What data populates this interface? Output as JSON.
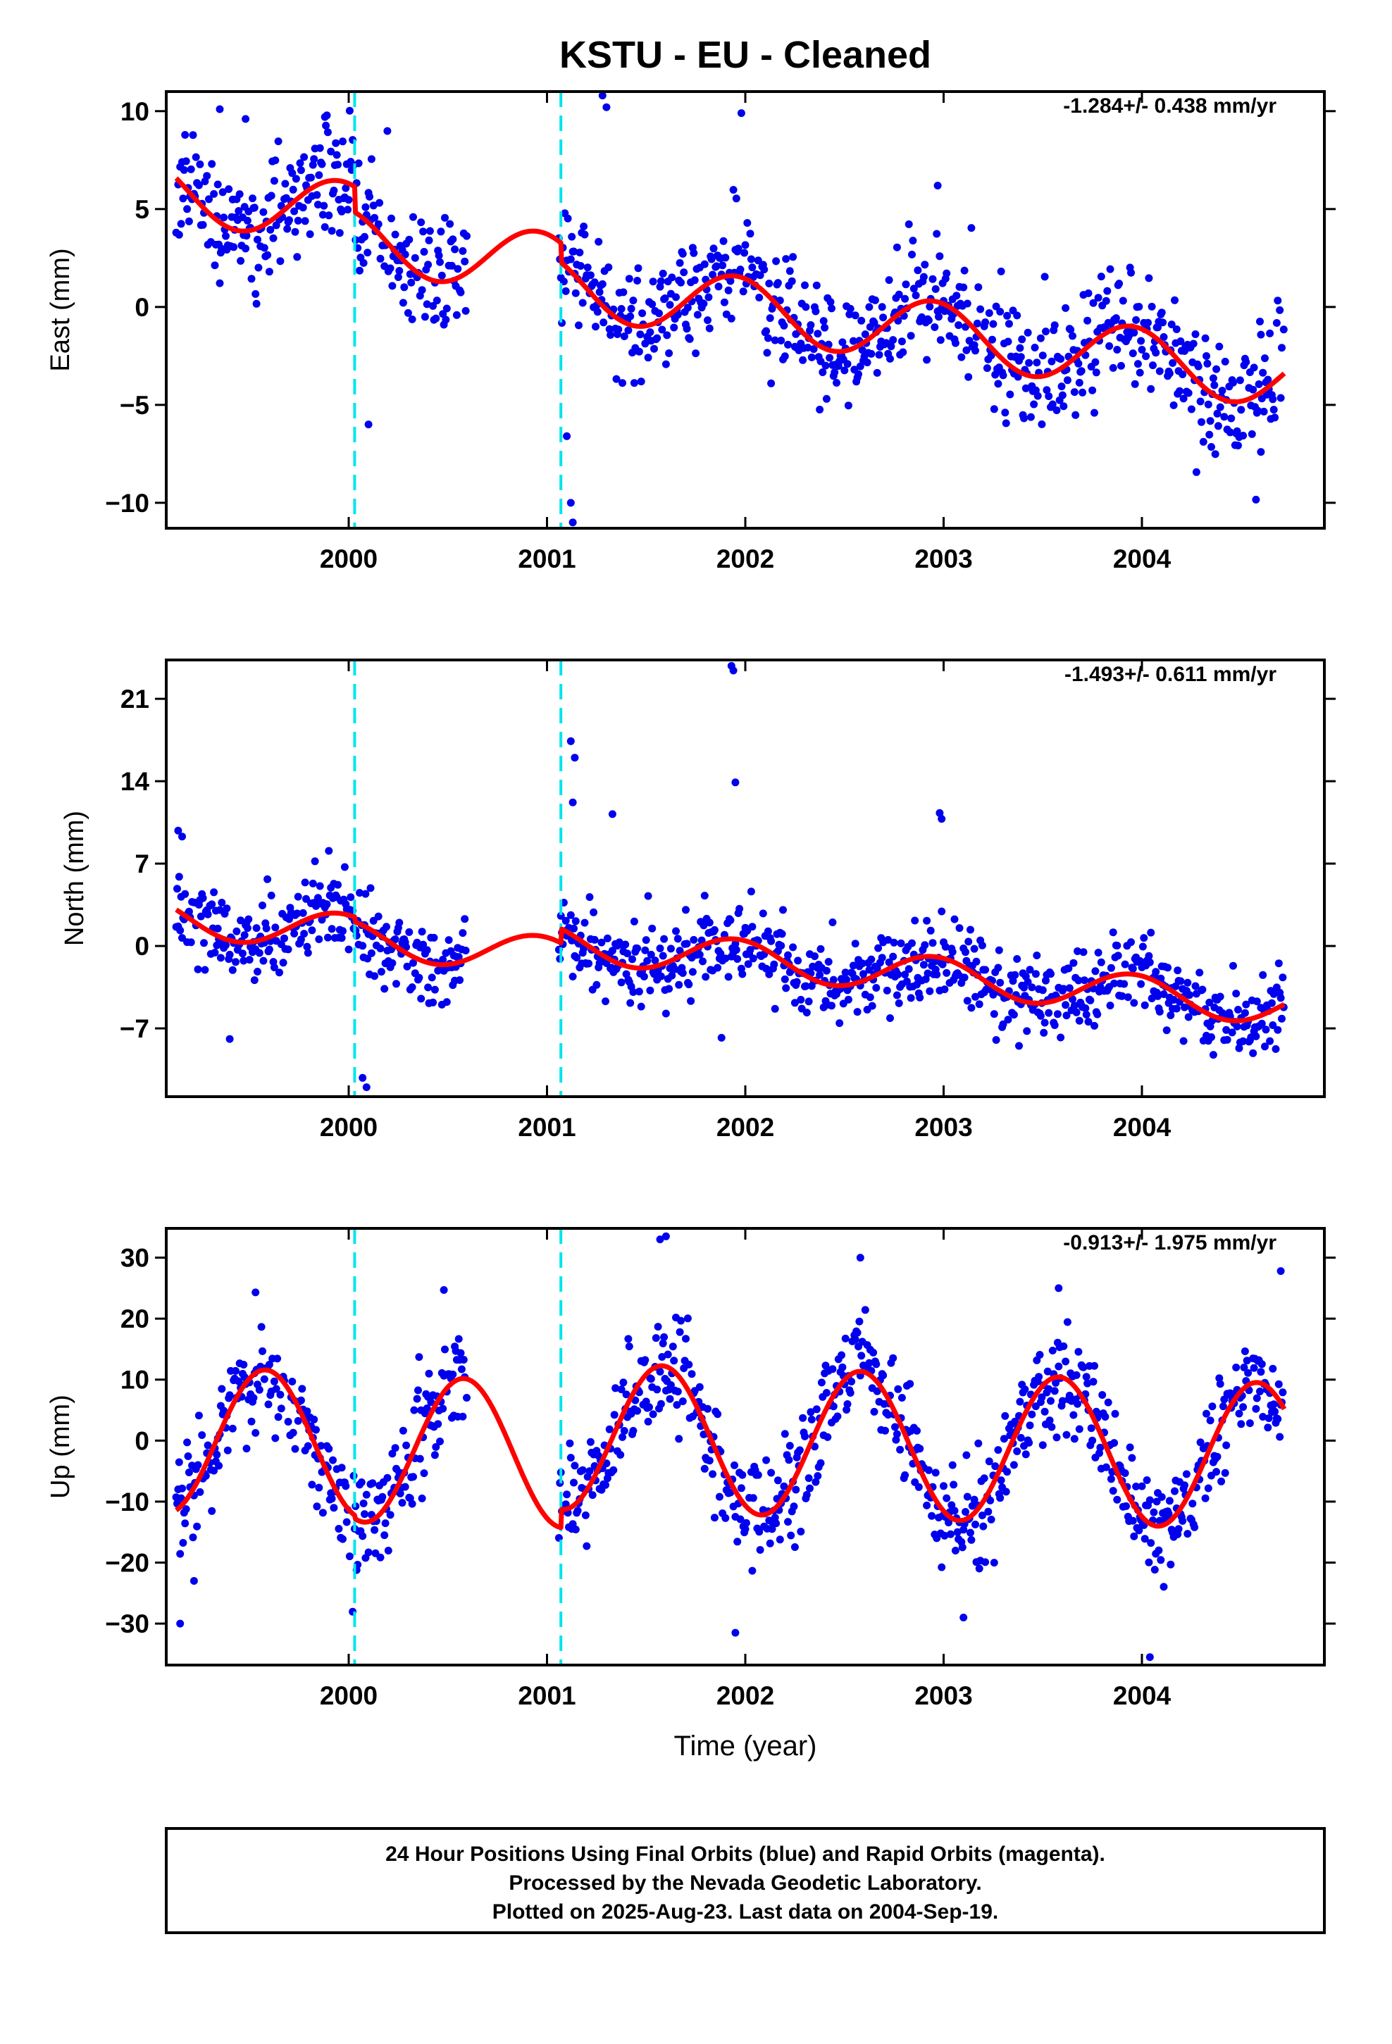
{
  "title": "KSTU  - EU - Cleaned",
  "footer": [
    "24 Hour Positions Using Final Orbits (blue) and Rapid Orbits (magenta).",
    "Processed by the Nevada Geodetic Laboratory.",
    "Plotted on 2025-Aug-23. Last data on 2004-Sep-19."
  ],
  "colors": {
    "points": "#0000ee",
    "model": "#ff0000",
    "breaks": "#00e5ee",
    "frame": "#000000"
  },
  "chart_data": [
    {
      "type": "scatter",
      "ylabel": "East (mm)",
      "xlabel": "",
      "rate_label": "-1.284+/- 0.438 mm/yr",
      "xlim": [
        1999.08,
        2004.92
      ],
      "ylim": [
        -11.3,
        11.0
      ],
      "xticks": [
        2000,
        2001,
        2002,
        2003,
        2004
      ],
      "xtick_labels": [
        "2000",
        "2001",
        "2002",
        "2003",
        "2004"
      ],
      "yticks": [
        10,
        5,
        0,
        -5,
        -10
      ],
      "ytick_labels": [
        "10",
        "5",
        "0",
        "−5",
        "−10"
      ],
      "breaks": [
        2000.03,
        2001.07
      ],
      "data_start": 1999.13,
      "data_end": 2004.72,
      "model_start": 1999.13,
      "model_end": 2004.72,
      "gaps": [
        [
          2000.6,
          2001.06
        ]
      ],
      "segments": [
        {
          "start": 1999.13,
          "end": 2000.03,
          "offset": 5.9
        },
        {
          "start": 2000.03,
          "end": 2001.07,
          "offset": 4.6
        },
        {
          "start": 2001.07,
          "end": 2004.72,
          "offset": 3.6
        }
      ],
      "trend": -1.284,
      "trend_ref": 1999.13,
      "annual": {
        "amp": 1.6,
        "peak": 1999.95
      },
      "noise_sd": 1.5,
      "outliers": [
        [
          1999.35,
          10.1
        ],
        [
          1999.48,
          9.6
        ],
        [
          1999.88,
          9.7
        ],
        [
          2001.12,
          -10.0
        ],
        [
          2001.13,
          -11.0
        ],
        [
          2001.1,
          -6.6
        ],
        [
          2001.28,
          10.8
        ],
        [
          2001.3,
          10.2
        ],
        [
          2001.98,
          9.9
        ],
        [
          2002.97,
          6.2
        ],
        [
          2004.6,
          -7.4
        ],
        [
          2000.1,
          -6.0
        ]
      ]
    },
    {
      "type": "scatter",
      "ylabel": "North (mm)",
      "xlabel": "",
      "rate_label": "-1.493+/- 0.611 mm/yr",
      "xlim": [
        1999.08,
        2004.92
      ],
      "ylim": [
        -12.8,
        24.3
      ],
      "xticks": [
        2000,
        2001,
        2002,
        2003,
        2004
      ],
      "xtick_labels": [
        "2000",
        "2001",
        "2002",
        "2003",
        "2004"
      ],
      "yticks": [
        21,
        14,
        7,
        0,
        -7
      ],
      "ytick_labels": [
        "21",
        "14",
        "7",
        "0",
        "−7"
      ],
      "breaks": [
        2000.03,
        2001.07
      ],
      "data_start": 1999.13,
      "data_end": 2004.72,
      "model_start": 1999.13,
      "model_end": 2004.72,
      "gaps": [
        [
          2000.6,
          2001.06
        ]
      ],
      "segments": [
        {
          "start": 1999.13,
          "end": 2000.03,
          "offset": 2.4
        },
        {
          "start": 2000.03,
          "end": 2001.07,
          "offset": 2.0
        },
        {
          "start": 2001.07,
          "end": 2004.72,
          "offset": 3.2
        }
      ],
      "trend": -1.493,
      "trend_ref": 1999.13,
      "annual": {
        "amp": 1.6,
        "peak": 1999.95
      },
      "noise_sd": 1.7,
      "outliers": [
        [
          1999.14,
          9.8
        ],
        [
          1999.16,
          9.3
        ],
        [
          2000.07,
          -11.2
        ],
        [
          2000.09,
          -12.0
        ],
        [
          2001.12,
          17.4
        ],
        [
          2001.14,
          16.0
        ],
        [
          2001.13,
          12.2
        ],
        [
          2001.33,
          11.2
        ],
        [
          1999.83,
          7.2
        ],
        [
          2001.93,
          23.8
        ],
        [
          2001.94,
          23.4
        ],
        [
          2001.95,
          13.9
        ],
        [
          2001.88,
          -7.8
        ],
        [
          2002.98,
          11.3
        ],
        [
          2002.99,
          10.8
        ],
        [
          1999.4,
          -7.9
        ]
      ]
    },
    {
      "type": "scatter",
      "ylabel": "Up (mm)",
      "xlabel": "Time (year)",
      "rate_label": "-0.913+/- 1.975 mm/yr",
      "xlim": [
        1999.08,
        2004.92
      ],
      "ylim": [
        -36.8,
        34.8
      ],
      "xticks": [
        2000,
        2001,
        2002,
        2003,
        2004
      ],
      "xtick_labels": [
        "2000",
        "2001",
        "2002",
        "2003",
        "2004"
      ],
      "yticks": [
        30,
        20,
        10,
        0,
        -10,
        -20,
        -30
      ],
      "ytick_labels": [
        "30",
        "20",
        "10",
        "0",
        "−10",
        "−20",
        "−30"
      ],
      "breaks": [
        2000.03,
        2001.07
      ],
      "data_start": 1999.13,
      "data_end": 2004.72,
      "model_start": 1999.13,
      "model_end": 2004.72,
      "gaps": [
        [
          2000.6,
          2001.06
        ]
      ],
      "segments": [
        {
          "start": 1999.13,
          "end": 2000.03,
          "offset": 0.0
        },
        {
          "start": 2000.03,
          "end": 2001.07,
          "offset": -0.5
        },
        {
          "start": 2001.07,
          "end": 2004.72,
          "offset": 2.5
        }
      ],
      "trend": -0.913,
      "trend_ref": 1999.13,
      "annual": {
        "amp": 12.0,
        "peak": 1999.58
      },
      "noise_sd": 4.5,
      "outliers": [
        [
          1999.15,
          -30.0
        ],
        [
          1999.22,
          -23.0
        ],
        [
          1999.53,
          24.3
        ],
        [
          2001.57,
          33.0
        ],
        [
          2001.6,
          33.5
        ],
        [
          2001.95,
          -31.5
        ],
        [
          2002.58,
          30.0
        ],
        [
          2003.58,
          25.0
        ],
        [
          2004.04,
          -35.5
        ],
        [
          2004.7,
          27.8
        ],
        [
          2000.48,
          24.7
        ],
        [
          2003.1,
          -29.0
        ]
      ]
    }
  ]
}
